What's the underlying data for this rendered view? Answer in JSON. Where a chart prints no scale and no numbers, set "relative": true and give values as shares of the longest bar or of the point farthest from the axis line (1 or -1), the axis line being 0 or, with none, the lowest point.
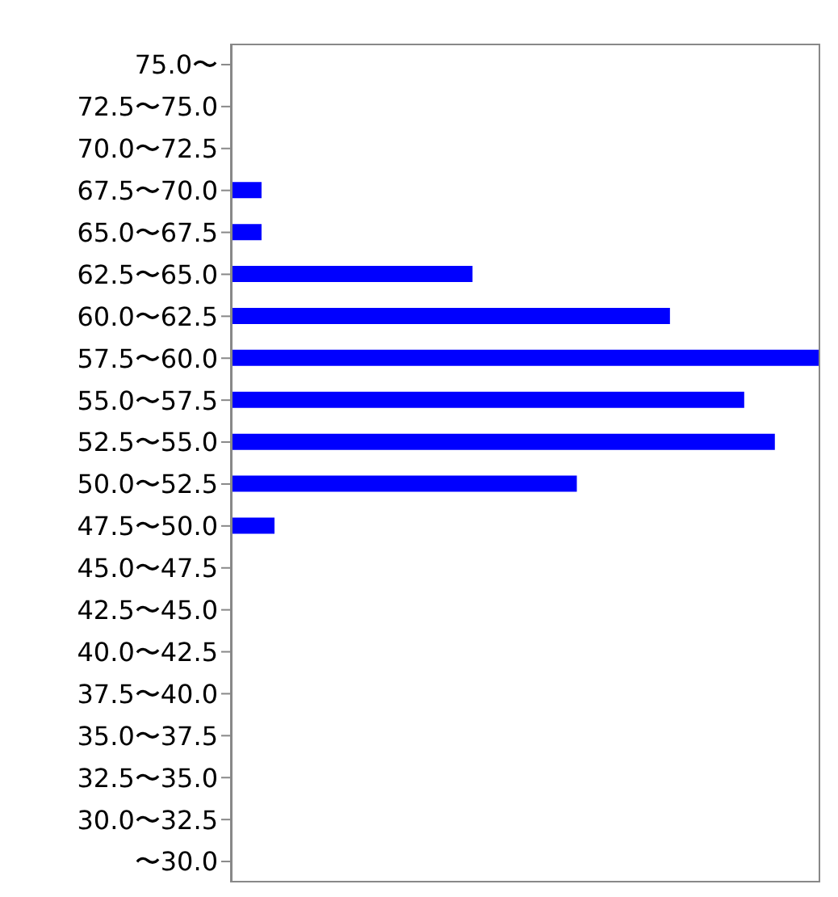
{
  "chart_data": {
    "type": "bar",
    "orientation": "horizontal",
    "relative": true,
    "color": "#0000ff",
    "categories": [
      "75.0〜",
      "72.5〜75.0",
      "70.0〜72.5",
      "67.5〜70.0",
      "65.0〜67.5",
      "62.5〜65.0",
      "60.0〜62.5",
      "57.5〜60.0",
      "55.0〜57.5",
      "52.5〜55.0",
      "50.0〜52.5",
      "47.5〜50.0",
      "45.0〜47.5",
      "42.5〜45.0",
      "40.0〜42.5",
      "37.5〜40.0",
      "35.0〜37.5",
      "32.5〜35.0",
      "30.0〜32.5",
      "〜30.0"
    ],
    "values": [
      0,
      0,
      0,
      0.052,
      0.052,
      0.41,
      0.745,
      1,
      0.871,
      0.923,
      0.587,
      0.074,
      0,
      0,
      0,
      0,
      0,
      0,
      0,
      0
    ],
    "grid": false,
    "legend": false
  }
}
